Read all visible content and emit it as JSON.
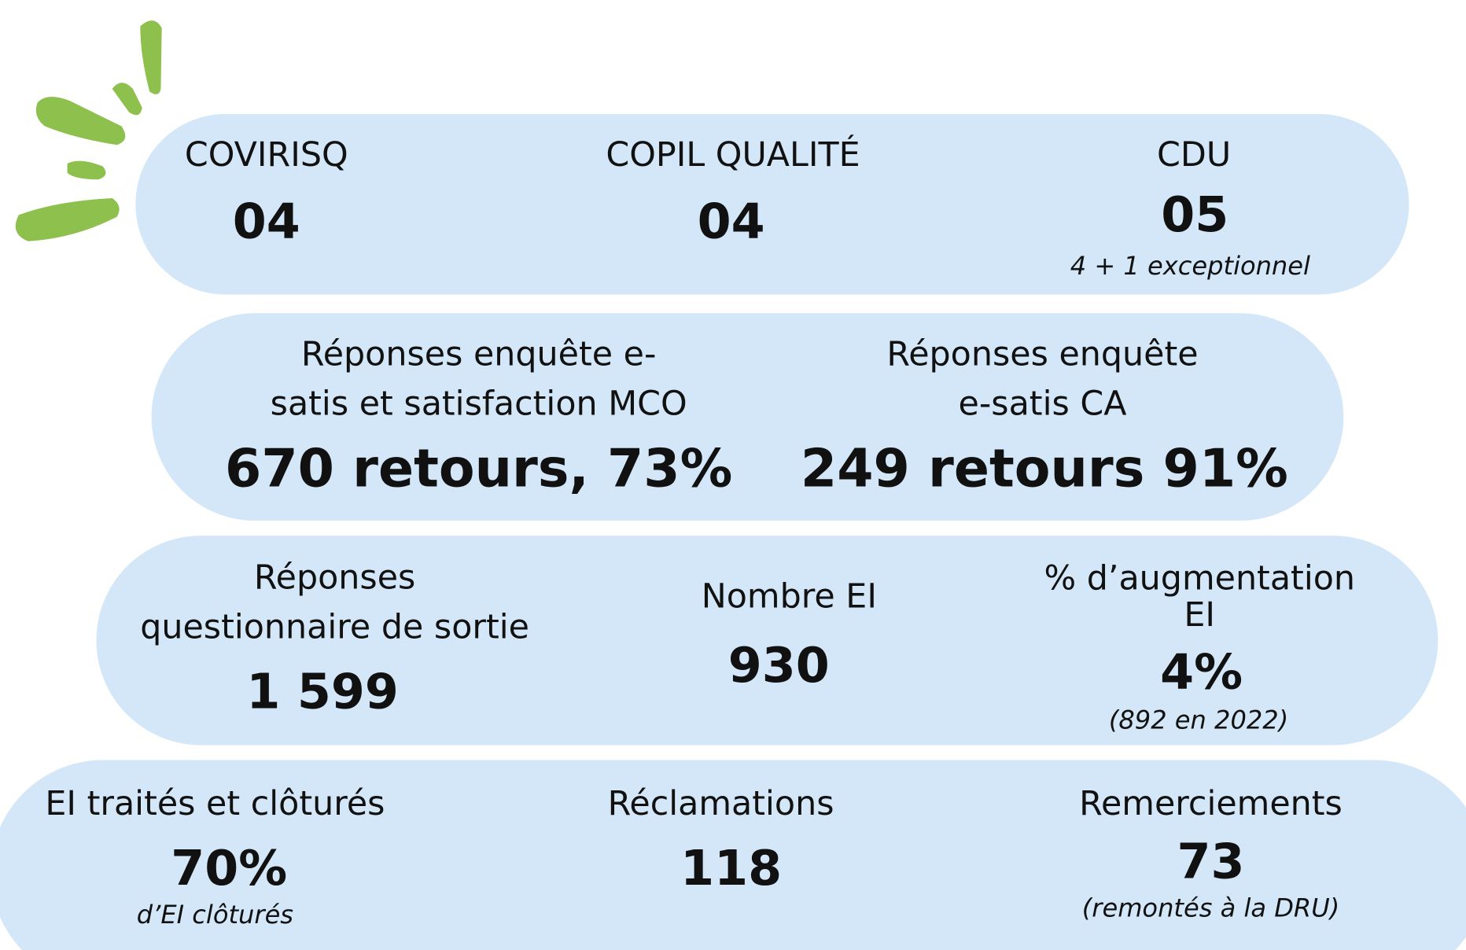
{
  "rows": [
    {
      "items": [
        {
          "label": [
            "COVIRISQ"
          ],
          "value": "04"
        },
        {
          "label": [
            "COPIL QUALITÉ"
          ],
          "value": "04"
        },
        {
          "label": [
            "CDU"
          ],
          "value": "05",
          "note": "4 + 1 exceptionnel"
        }
      ]
    },
    {
      "items": [
        {
          "label": [
            "Réponses enquête e-",
            "satis et satisfaction MCO"
          ],
          "value": "670 retours, 73%"
        },
        {
          "label": [
            "Réponses enquête",
            "e-satis CA"
          ],
          "value": "249 retours 91%"
        }
      ]
    },
    {
      "items": [
        {
          "label": [
            "Réponses",
            "questionnaire de sortie"
          ],
          "value": "1 599"
        },
        {
          "label": [
            "Nombre EI"
          ],
          "value": "930"
        },
        {
          "label": [
            "% d’augmentation",
            "EI"
          ],
          "value": "4%",
          "note": "(892 en 2022)"
        }
      ]
    },
    {
      "items": [
        {
          "label": [
            "EI traités et clôturés"
          ],
          "value": "70%",
          "note": "d’EI clôturés"
        },
        {
          "label": [
            "Réclamations"
          ],
          "value": "118"
        },
        {
          "label": [
            "Remerciements"
          ],
          "value": "73",
          "note": "(remontés à la DRU)"
        }
      ]
    }
  ]
}
